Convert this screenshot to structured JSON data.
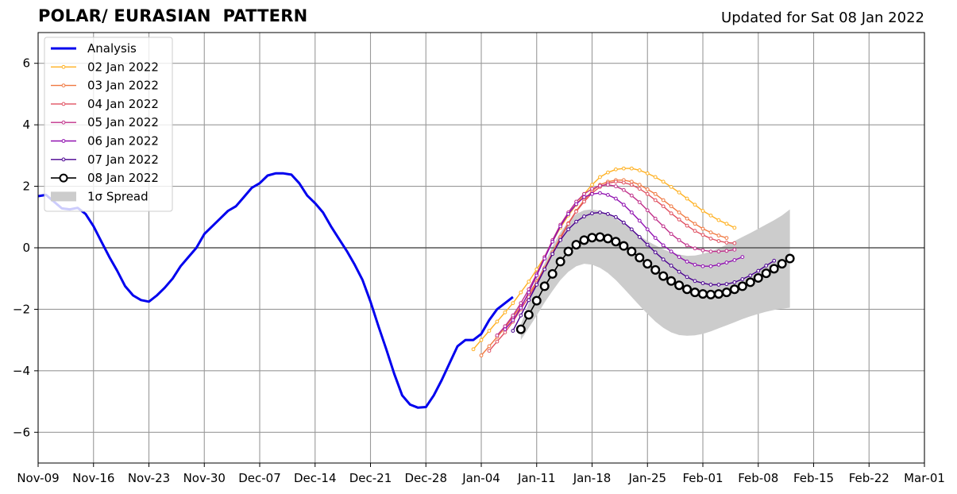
{
  "title": "POLAR/ EURASIAN  PATTERN",
  "subtitle": "Updated for Sat 08 Jan 2022",
  "chart_data": {
    "type": "line",
    "title": "POLAR/ EURASIAN  PATTERN",
    "xlabel": "",
    "ylabel": "",
    "x_tick_labels": [
      "Nov-09",
      "Nov-16",
      "Nov-23",
      "Nov-30",
      "Dec-07",
      "Dec-14",
      "Dec-21",
      "Dec-28",
      "Jan-04",
      "Jan-11",
      "Jan-18",
      "Jan-25",
      "Feb-01",
      "Feb-08",
      "Feb-15",
      "Feb-22",
      "Mar-01"
    ],
    "y_ticks": [
      -6,
      -4,
      -2,
      0,
      2,
      4,
      6
    ],
    "y_tick_labels": [
      "−6",
      "−4",
      "−2",
      "0",
      "2",
      "4",
      "6"
    ],
    "xlim": [
      "2021-11-09",
      "2022-03-01"
    ],
    "ylim": [
      -7,
      7
    ],
    "grid": true,
    "legend_position": "upper left",
    "series": [
      {
        "name": "Analysis",
        "color": "#0000ee",
        "style": "thick-line",
        "start_date": "2021-11-09",
        "values": [
          1.68,
          1.72,
          1.5,
          1.28,
          1.25,
          1.3,
          1.1,
          0.7,
          0.2,
          -0.3,
          -0.75,
          -1.25,
          -1.55,
          -1.7,
          -1.75,
          -1.55,
          -1.3,
          -1.0,
          -0.6,
          -0.3,
          0.0,
          0.45,
          0.7,
          0.95,
          1.2,
          1.35,
          1.65,
          1.95,
          2.1,
          2.35,
          2.42,
          2.42,
          2.38,
          2.1,
          1.7,
          1.45,
          1.15,
          0.7,
          0.3,
          -0.1,
          -0.55,
          -1.05,
          -1.75,
          -2.55,
          -3.3,
          -4.1,
          -4.8,
          -5.1,
          -5.2,
          -5.18,
          -4.8,
          -4.3,
          -3.75,
          -3.2,
          -3.0,
          -3.0,
          -2.8,
          -2.35,
          -2.0,
          -1.8,
          -1.6
        ]
      },
      {
        "name": "02 Jan 2022",
        "color": "#ffb020",
        "style": "small-dots",
        "start_date": "2022-01-03",
        "values": [
          -3.3,
          -3.0,
          -2.7,
          -2.4,
          -2.1,
          -1.8,
          -1.45,
          -1.1,
          -0.7,
          -0.3,
          0.2,
          0.65,
          1.05,
          1.4,
          1.75,
          2.05,
          2.3,
          2.45,
          2.55,
          2.58,
          2.58,
          2.52,
          2.42,
          2.3,
          2.15,
          1.98,
          1.8,
          1.6,
          1.4,
          1.2,
          1.05,
          0.9,
          0.78,
          0.65
        ]
      },
      {
        "name": "03 Jan 2022",
        "color": "#f07840",
        "style": "small-dots",
        "start_date": "2022-01-04",
        "values": [
          -3.5,
          -3.2,
          -2.9,
          -2.6,
          -2.25,
          -1.9,
          -1.5,
          -1.1,
          -0.65,
          -0.15,
          0.35,
          0.8,
          1.2,
          1.55,
          1.85,
          2.05,
          2.15,
          2.2,
          2.2,
          2.15,
          2.05,
          1.9,
          1.75,
          1.55,
          1.35,
          1.15,
          0.95,
          0.78,
          0.62,
          0.5,
          0.4,
          0.32
        ]
      },
      {
        "name": "04 Jan 2022",
        "color": "#e05060",
        "style": "small-dots",
        "start_date": "2022-01-05",
        "values": [
          -3.35,
          -3.05,
          -2.75,
          -2.4,
          -2.0,
          -1.6,
          -1.15,
          -0.7,
          -0.2,
          0.3,
          0.78,
          1.18,
          1.5,
          1.78,
          1.98,
          2.1,
          2.15,
          2.12,
          2.05,
          1.92,
          1.75,
          1.55,
          1.35,
          1.12,
          0.92,
          0.72,
          0.55,
          0.42,
          0.3,
          0.22,
          0.17,
          0.15
        ]
      },
      {
        "name": "05 Jan 2022",
        "color": "#c0308a",
        "style": "small-dots",
        "start_date": "2022-01-06",
        "values": [
          -2.85,
          -2.55,
          -2.2,
          -1.8,
          -1.35,
          -0.85,
          -0.3,
          0.25,
          0.75,
          1.15,
          1.5,
          1.75,
          1.92,
          2.02,
          2.05,
          2.0,
          1.88,
          1.7,
          1.48,
          1.22,
          0.95,
          0.7,
          0.45,
          0.25,
          0.08,
          -0.02,
          -0.08,
          -0.12,
          -0.12,
          -0.1,
          -0.06
        ]
      },
      {
        "name": "06 Jan 2022",
        "color": "#9010b0",
        "style": "small-dots",
        "start_date": "2022-01-07",
        "values": [
          -2.65,
          -2.35,
          -1.95,
          -1.45,
          -0.9,
          -0.35,
          0.2,
          0.7,
          1.1,
          1.42,
          1.65,
          1.75,
          1.78,
          1.72,
          1.6,
          1.4,
          1.15,
          0.88,
          0.6,
          0.32,
          0.08,
          -0.12,
          -0.3,
          -0.45,
          -0.55,
          -0.6,
          -0.6,
          -0.55,
          -0.48,
          -0.4,
          -0.3
        ]
      },
      {
        "name": "07 Jan 2022",
        "color": "#4a0090",
        "style": "small-dots",
        "start_date": "2022-01-08",
        "values": [
          -2.7,
          -2.2,
          -1.7,
          -1.2,
          -0.7,
          -0.2,
          0.25,
          0.6,
          0.85,
          1.02,
          1.12,
          1.15,
          1.1,
          1.0,
          0.82,
          0.6,
          0.35,
          0.1,
          -0.15,
          -0.38,
          -0.58,
          -0.78,
          -0.95,
          -1.08,
          -1.15,
          -1.2,
          -1.2,
          -1.18,
          -1.12,
          -1.02,
          -0.9,
          -0.75,
          -0.58,
          -0.42
        ]
      },
      {
        "name": "08 Jan 2022",
        "color": "#000000",
        "style": "open-circles",
        "start_date": "2022-01-09",
        "values": [
          -2.65,
          -2.18,
          -1.72,
          -1.25,
          -0.85,
          -0.45,
          -0.12,
          0.1,
          0.25,
          0.33,
          0.35,
          0.3,
          0.2,
          0.06,
          -0.12,
          -0.32,
          -0.52,
          -0.72,
          -0.92,
          -1.08,
          -1.22,
          -1.35,
          -1.45,
          -1.5,
          -1.52,
          -1.5,
          -1.45,
          -1.35,
          -1.25,
          -1.12,
          -0.98,
          -0.83,
          -0.68,
          -0.52,
          -0.35
        ]
      },
      {
        "name": "1σ Spread",
        "color": "#cccccc",
        "style": "band",
        "start_date": "2022-01-09",
        "upper": [
          -2.5,
          -1.8,
          -1.1,
          -0.5,
          0.05,
          0.5,
          0.85,
          1.1,
          1.22,
          1.25,
          1.2,
          1.1,
          0.95,
          0.78,
          0.58,
          0.4,
          0.22,
          0.08,
          -0.05,
          -0.15,
          -0.22,
          -0.26,
          -0.25,
          -0.2,
          -0.12,
          -0.02,
          0.1,
          0.22,
          0.35,
          0.48,
          0.62,
          0.76,
          0.9,
          1.05,
          1.25
        ],
        "lower": [
          -3.0,
          -2.6,
          -2.2,
          -1.78,
          -1.4,
          -1.05,
          -0.78,
          -0.6,
          -0.52,
          -0.55,
          -0.65,
          -0.82,
          -1.05,
          -1.32,
          -1.6,
          -1.88,
          -2.15,
          -2.4,
          -2.6,
          -2.75,
          -2.84,
          -2.86,
          -2.85,
          -2.8,
          -2.72,
          -2.62,
          -2.52,
          -2.42,
          -2.32,
          -2.23,
          -2.15,
          -2.08,
          -2.02,
          -1.98,
          -1.95
        ]
      }
    ]
  }
}
